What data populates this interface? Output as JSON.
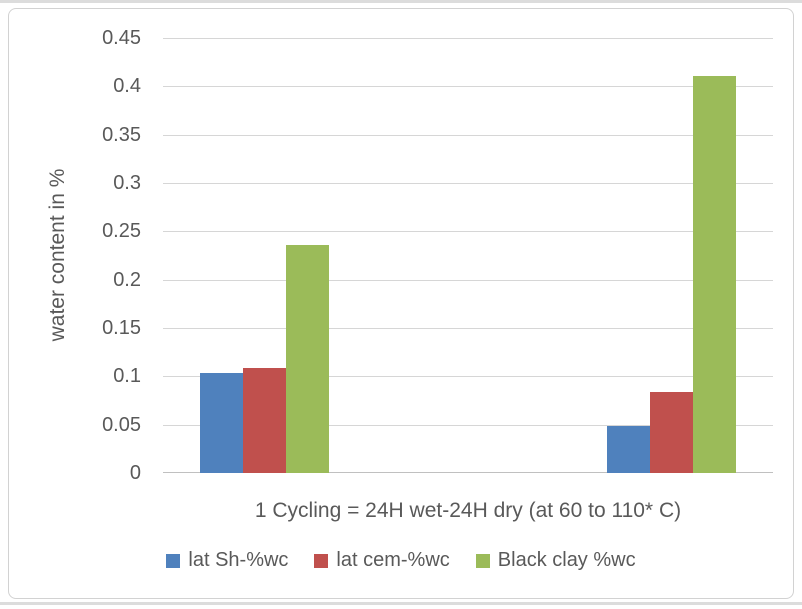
{
  "chart_data": {
    "type": "bar",
    "title": "",
    "xlabel": "1 Cycling = 24H wet-24H dry (at 60 to 110* C)",
    "ylabel": "water content in %",
    "ylim": [
      0,
      0.45
    ],
    "yticks": [
      "0",
      "0.05",
      "0.1",
      "0.15",
      "0.2",
      "0.25",
      "0.3",
      "0.35",
      "0.4",
      "0.45"
    ],
    "grid": true,
    "legend_position": "bottom",
    "categories": [
      "",
      ""
    ],
    "category_positions": [
      0.1667,
      0.8333
    ],
    "series": [
      {
        "name": "lat Sh-%wc",
        "color": "#4f81bd",
        "values": [
          0.103,
          0.049
        ]
      },
      {
        "name": "lat cem-%wc",
        "color": "#c0504d",
        "values": [
          0.109,
          0.084
        ]
      },
      {
        "name": "Black clay %wc",
        "color": "#9bbb59",
        "values": [
          0.236,
          0.411
        ]
      }
    ]
  },
  "colors": {
    "text": "#595959",
    "gridline": "#d6d6d6",
    "axis_line": "#c0c0c0",
    "frame_border": "#d2d2d2"
  }
}
